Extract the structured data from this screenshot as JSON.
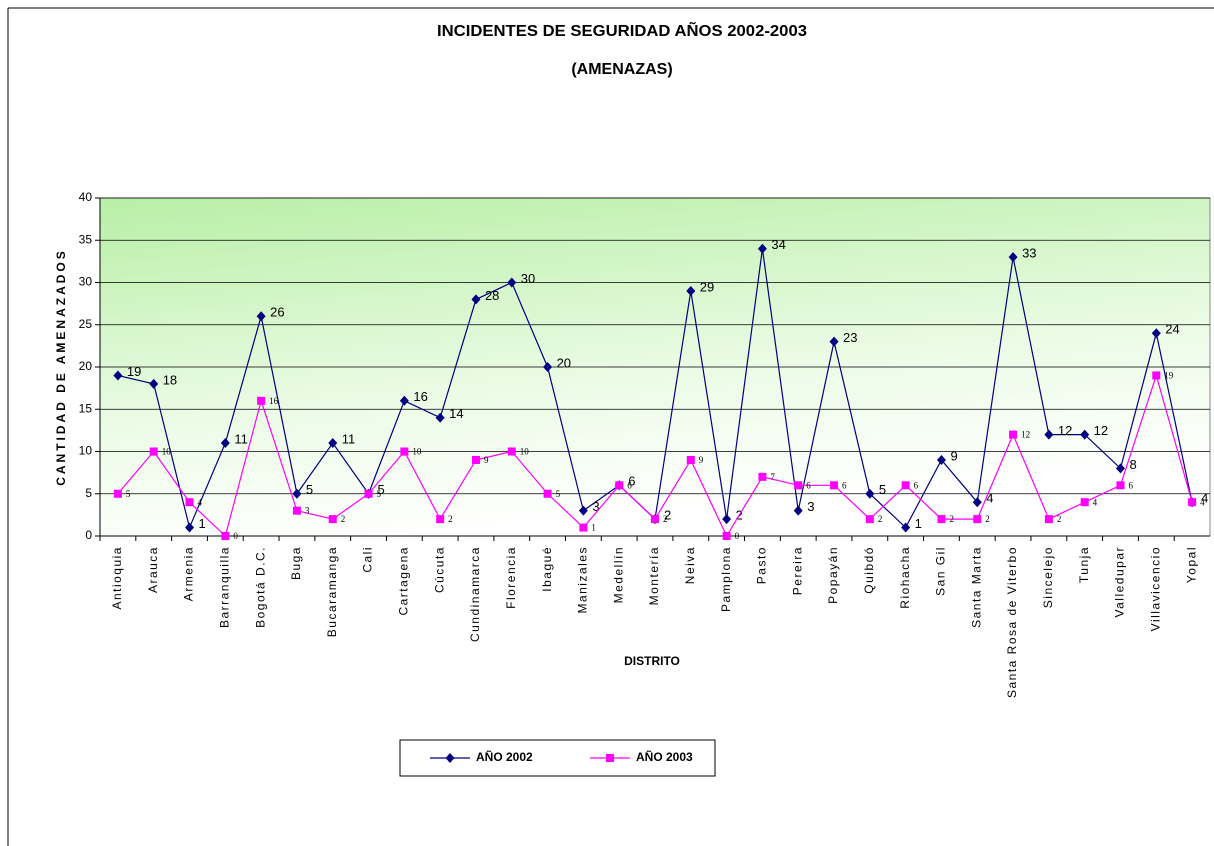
{
  "chart_data": {
    "type": "line",
    "title": "INCIDENTES DE SEGURIDAD AÑOS 2002-2003",
    "subtitle": "(AMENAZAS)",
    "x_label": "DISTRITO",
    "y_label": "CANTIDAD DE AMENAZADOS",
    "categories": [
      "Antioquia",
      "Arauca",
      "Armenia",
      "Barranquilla",
      "Bogotá D.C.",
      "Buga",
      "Bucaramanga",
      "Cali",
      "Cartagena",
      "Cúcuta",
      "Cundinamarca",
      "Florencia",
      "Ibagué",
      "Manizales",
      "Medellín",
      "Montería",
      "Neiva",
      "Pamplona",
      "Pasto",
      "Pereira",
      "Popayán",
      "Quibdó",
      "Riohacha",
      "San Gil",
      "Santa Marta",
      "Santa Rosa de Viterbo",
      "Sincelejo",
      "Tunja",
      "Valledupar",
      "Villavicencio",
      "Yopal"
    ],
    "series": [
      {
        "name": "AÑO 2002",
        "color": "#000080",
        "marker": "diamond",
        "values": [
          19,
          18,
          1,
          11,
          26,
          5,
          11,
          5,
          16,
          14,
          28,
          30,
          20,
          3,
          6,
          2,
          29,
          2,
          34,
          3,
          23,
          5,
          1,
          9,
          4,
          33,
          12,
          12,
          8,
          24,
          4
        ]
      },
      {
        "name": "AÑO 2003",
        "color": "#ff00ff",
        "marker": "square",
        "values": [
          5,
          10,
          4,
          0,
          16,
          3,
          2,
          5,
          10,
          2,
          9,
          10,
          5,
          1,
          6,
          2,
          9,
          0,
          7,
          6,
          6,
          2,
          6,
          2,
          2,
          12,
          2,
          4,
          6,
          19,
          4
        ]
      }
    ],
    "ylim": [
      0,
      40
    ],
    "yticks": [
      0,
      5,
      10,
      15,
      20,
      25,
      30,
      35,
      40
    ],
    "grid": true,
    "legend": "bottom"
  }
}
